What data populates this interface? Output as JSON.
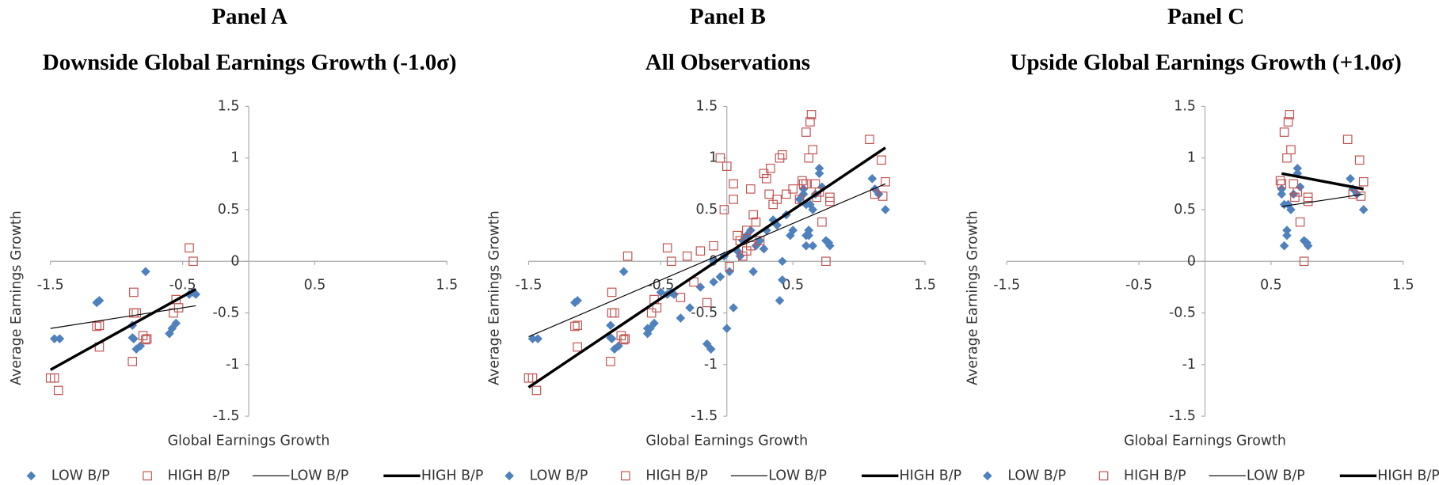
{
  "chart_data": [
    {
      "type": "scatter",
      "title": "Panel A",
      "subtitle": "Downside Global Earnings Growth (-1.0σ)",
      "xlabel": "Global Earnings Growth",
      "ylabel": "Average Earnings Growth",
      "xlim": [
        -1.5,
        1.5
      ],
      "xticks": [
        -1.5,
        -0.5,
        0.5,
        1.5
      ],
      "ylim": [
        -1.5,
        1.5
      ],
      "yticks": [
        -1.5,
        -1,
        -0.5,
        0,
        0.5,
        1,
        1.5
      ],
      "series": [
        {
          "name": "LOW B/P",
          "marker": "diamond",
          "color": "#4f81bd",
          "x": [
            -1.47,
            -1.43,
            -1.15,
            -1.13,
            -0.88,
            -0.87,
            -0.85,
            -0.82,
            -0.78,
            -0.6,
            -0.58,
            -0.55,
            -0.45,
            -0.42,
            -0.4,
            -0.88
          ],
          "values": [
            -0.75,
            -0.75,
            -0.4,
            -0.38,
            -0.62,
            -0.75,
            -0.85,
            -0.82,
            -0.1,
            -0.7,
            -0.65,
            -0.6,
            -0.32,
            -0.3,
            -0.32,
            -0.74
          ]
        },
        {
          "name": "HIGH B/P",
          "marker": "square",
          "color": "#c0504d",
          "x": [
            -1.5,
            -1.47,
            -1.44,
            -1.15,
            -1.13,
            -1.13,
            -0.87,
            -0.87,
            -0.85,
            -0.88,
            -0.8,
            -0.78,
            -0.77,
            -0.55,
            -0.53,
            -0.57,
            -0.45,
            -0.42
          ],
          "values": [
            -1.13,
            -1.13,
            -1.25,
            -0.63,
            -0.62,
            -0.83,
            -0.3,
            -0.5,
            -0.5,
            -0.97,
            -0.72,
            -0.76,
            -0.75,
            -0.37,
            -0.45,
            -0.5,
            0.13,
            0.0
          ]
        },
        {
          "name": "LOW B/P",
          "marker": "line",
          "color": "#000000",
          "width": 1,
          "x": [
            -1.5,
            -0.4
          ],
          "values": [
            -0.65,
            -0.43
          ]
        },
        {
          "name": "HIGH B/P",
          "marker": "line",
          "color": "#000000",
          "width": 3,
          "x": [
            -1.5,
            -0.4
          ],
          "values": [
            -1.05,
            -0.27
          ]
        }
      ]
    },
    {
      "type": "scatter",
      "title": "Panel B",
      "subtitle": "All Observations",
      "xlabel": "Global Earnings Growth",
      "ylabel": "Average Earnings Growth",
      "xlim": [
        -1.5,
        1.5
      ],
      "xticks": [
        -1.5,
        -0.5,
        0.5,
        1.5
      ],
      "ylim": [
        -1.5,
        1.5
      ],
      "yticks": [
        -1.5,
        -1,
        -0.5,
        0,
        0.5,
        1,
        1.5
      ],
      "series": [
        {
          "name": "LOW B/P",
          "marker": "diamond",
          "color": "#4f81bd",
          "x": [
            -1.47,
            -1.43,
            -1.15,
            -1.13,
            -0.88,
            -0.87,
            -0.85,
            -0.82,
            -0.78,
            -0.6,
            -0.58,
            -0.55,
            -0.45,
            -0.42,
            -0.4,
            -0.88,
            -0.6,
            -0.5,
            -0.35,
            -0.28,
            -0.2,
            -0.15,
            -0.12,
            -0.1,
            -0.05,
            0,
            0.02,
            0.05,
            0.08,
            0.1,
            0.12,
            0.15,
            0.18,
            0.2,
            0.22,
            0.25,
            0.3,
            0.35,
            0.38,
            0.4,
            0.42,
            0.45,
            0.48,
            0.5,
            0.55,
            0.6,
            0.62,
            0.65,
            -0.02,
            0.28,
            -0.1,
            0.42,
            0.58,
            0.58,
            0.6,
            0.62,
            0.62,
            0.63,
            0.65,
            0.67,
            0.7,
            0.7,
            0.72,
            0.75,
            0.77,
            0.78,
            1.1,
            1.12,
            1.15,
            1.2,
            0.6
          ],
          "values": [
            -0.75,
            -0.75,
            -0.4,
            -0.38,
            -0.62,
            -0.75,
            -0.85,
            -0.82,
            -0.1,
            -0.7,
            -0.65,
            -0.6,
            -0.32,
            -0.3,
            -0.32,
            -0.74,
            -0.65,
            -0.3,
            -0.55,
            -0.45,
            -0.25,
            -0.8,
            -0.85,
            -0.2,
            -0.15,
            -0.65,
            -0.1,
            -0.45,
            0.1,
            0.05,
            0.2,
            0.25,
            0.3,
            -0.1,
            0.15,
            0.2,
            0.3,
            0.4,
            0.35,
            -0.38,
            0.0,
            0.45,
            0.25,
            0.3,
            0.6,
            0.25,
            0.3,
            0.15,
            0.05,
            0.12,
            0.0,
            -0.18,
            0.65,
            0.7,
            0.15,
            0.25,
            0.3,
            0.55,
            0.5,
            0.65,
            0.85,
            0.9,
            0.72,
            0.2,
            0.18,
            0.15,
            0.8,
            0.7,
            0.65,
            0.5,
            0.55
          ]
        },
        {
          "name": "HIGH B/P",
          "marker": "square",
          "color": "#c0504d",
          "x": [
            -1.5,
            -1.47,
            -1.44,
            -1.15,
            -1.13,
            -1.13,
            -0.87,
            -0.87,
            -0.85,
            -0.88,
            -0.8,
            -0.78,
            -0.77,
            -0.55,
            -0.53,
            -0.57,
            -0.45,
            -0.42,
            -0.75,
            -0.35,
            -0.3,
            -0.25,
            -0.2,
            -0.15,
            -0.1,
            -0.05,
            0,
            0.05,
            0.05,
            0.08,
            0.1,
            0.12,
            0.15,
            0.18,
            0.2,
            0.22,
            0.25,
            0.28,
            0.3,
            0.32,
            0.35,
            0.38,
            0.4,
            0.42,
            0.45,
            0.5,
            0.55,
            0.6,
            -0.02,
            0.18,
            0.33,
            0.15,
            0.02,
            0.57,
            0.58,
            0.6,
            0.62,
            0.63,
            0.64,
            0.65,
            0.67,
            0.68,
            0.7,
            0.72,
            0.75,
            0.78,
            0.78,
            1.08,
            1.12,
            1.17,
            1.2,
            1.18
          ],
          "values": [
            -1.13,
            -1.13,
            -1.25,
            -0.63,
            -0.62,
            -0.83,
            -0.3,
            -0.5,
            -0.5,
            -0.97,
            -0.72,
            -0.76,
            -0.75,
            -0.37,
            -0.45,
            -0.5,
            0.13,
            0.0,
            0.05,
            -0.35,
            0.05,
            -0.2,
            0.1,
            -0.4,
            0.15,
            1.0,
            0.92,
            0.75,
            0.6,
            0.25,
            0.2,
            0.05,
            0.3,
            0.15,
            0.45,
            0.38,
            0.2,
            0.85,
            0.8,
            0.65,
            0.55,
            0.6,
            1.0,
            1.03,
            0.65,
            0.7,
            0.6,
            0.75,
            0.5,
            0.7,
            0.9,
            0.1,
            -0.05,
            0.78,
            0.75,
            1.25,
            1.0,
            1.35,
            1.42,
            1.08,
            0.75,
            0.62,
            0.67,
            0.38,
            0.0,
            0.62,
            0.58,
            1.18,
            0.65,
            0.98,
            0.77,
            0.63
          ]
        },
        {
          "name": "LOW B/P",
          "marker": "line",
          "color": "#000000",
          "width": 1,
          "x": [
            -1.5,
            1.2
          ],
          "values": [
            -0.73,
            0.75
          ]
        },
        {
          "name": "HIGH B/P",
          "marker": "line",
          "color": "#000000",
          "width": 3,
          "x": [
            -1.5,
            1.2
          ],
          "values": [
            -1.22,
            1.1
          ]
        }
      ]
    },
    {
      "type": "scatter",
      "title": "Panel C",
      "subtitle": "Upside Global Earnings Growth (+1.0σ)",
      "xlabel": "Global Earnings Growth",
      "ylabel": "Average Earnings Growth",
      "xlim": [
        -1.5,
        1.5
      ],
      "xticks": [
        -1.5,
        -0.5,
        0.5,
        1.5
      ],
      "ylim": [
        -1.5,
        1.5
      ],
      "yticks": [
        -1.5,
        -1,
        -0.5,
        0,
        0.5,
        1,
        1.5
      ],
      "series": [
        {
          "name": "LOW B/P",
          "marker": "diamond",
          "color": "#4f81bd",
          "x": [
            0.58,
            0.58,
            0.6,
            0.62,
            0.62,
            0.63,
            0.65,
            0.67,
            0.7,
            0.7,
            0.72,
            0.75,
            0.77,
            0.78,
            1.1,
            1.12,
            1.15,
            1.2,
            0.6
          ],
          "values": [
            0.65,
            0.7,
            0.15,
            0.25,
            0.3,
            0.55,
            0.5,
            0.65,
            0.85,
            0.9,
            0.72,
            0.2,
            0.18,
            0.15,
            0.8,
            0.7,
            0.65,
            0.5,
            0.55
          ]
        },
        {
          "name": "HIGH B/P",
          "marker": "square",
          "color": "#c0504d",
          "x": [
            0.57,
            0.58,
            0.6,
            0.62,
            0.63,
            0.64,
            0.65,
            0.67,
            0.68,
            0.7,
            0.72,
            0.75,
            0.78,
            0.78,
            1.08,
            1.12,
            1.17,
            1.2,
            1.18
          ],
          "values": [
            0.78,
            0.75,
            1.25,
            1.0,
            1.35,
            1.42,
            1.08,
            0.75,
            0.62,
            0.67,
            0.38,
            0.0,
            0.62,
            0.58,
            1.18,
            0.65,
            0.98,
            0.77,
            0.63
          ]
        },
        {
          "name": "LOW B/P",
          "marker": "line",
          "color": "#000000",
          "width": 1,
          "x": [
            0.58,
            1.2
          ],
          "values": [
            0.53,
            0.65
          ]
        },
        {
          "name": "HIGH B/P",
          "marker": "line",
          "color": "#000000",
          "width": 3,
          "x": [
            0.58,
            1.2
          ],
          "values": [
            0.85,
            0.7
          ]
        }
      ]
    }
  ]
}
